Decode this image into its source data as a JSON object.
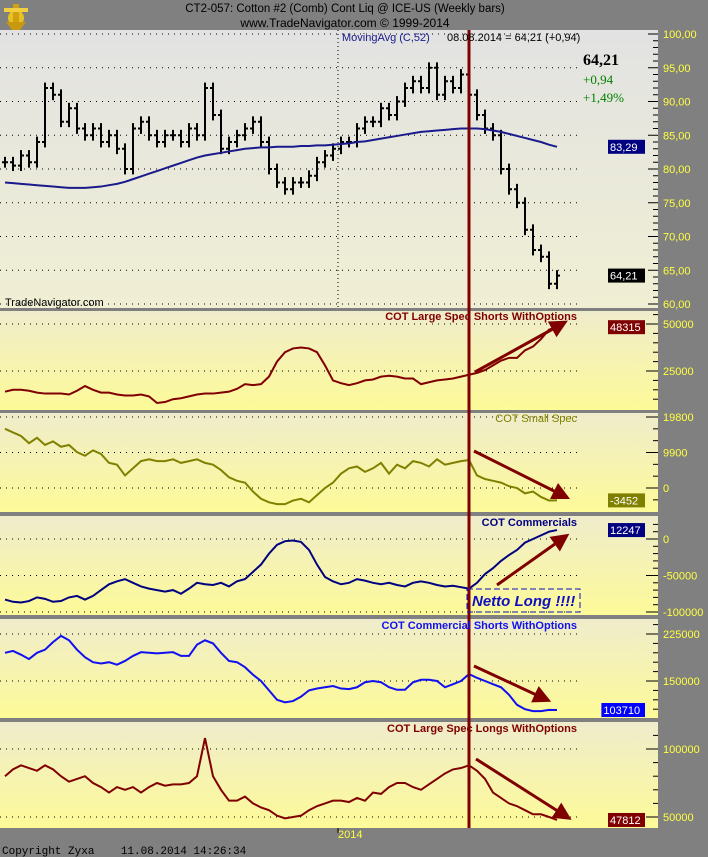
{
  "header": {
    "title": "CT2-057:  Cotton #2 (Comb) Cont Liq @ ICE-US  (Weekly bars)",
    "subtitle": "www.TradeNavigator.com © 1999-2014"
  },
  "footer": {
    "copyright": "Copyright Zyxa    11.08.2014 14:26:34",
    "x_tick": "2014"
  },
  "price_panel": {
    "indicator_label": "MovingAvg (C,52)",
    "cursor_readout": "08.08.2014 = 64,21 (+0,94)",
    "last_price": "64,21",
    "change": "+0,94",
    "change_pct": "+1,49%",
    "watermark": "TradeNavigator.com",
    "ma_value_label": "83,29",
    "price_value_label": "64,21",
    "ticks": [
      "100,00",
      "95,00",
      "90,00",
      "85,00",
      "80,00",
      "75,00",
      "70,00",
      "65,00",
      "60,00"
    ]
  },
  "annotation": {
    "text": "Netto Long !!!!"
  },
  "colors": {
    "background": "#808080",
    "axis_text": "#ffff40",
    "price_bars": "#000000",
    "moving_avg": "#1a1a8c",
    "large_spec_shorts": "#800000",
    "small_spec": "#808000",
    "commercials": "#000080",
    "commercial_shorts": "#1010f0",
    "large_spec_longs": "#800000",
    "marker_line": "#800000",
    "positive": "#008000"
  },
  "chart_data": [
    {
      "type": "bar",
      "subtype": "ohlc-weekly",
      "title": "CT2-057:  Cotton #2 (Comb) Cont Liq @ ICE-US  (Weekly bars)",
      "ylim": [
        60,
        100
      ],
      "x_tick_labels": [
        "2014"
      ],
      "marker_date": "08.08.2014",
      "close": [
        81,
        80.5,
        82,
        81,
        84,
        92,
        91,
        87,
        89,
        86,
        85,
        86,
        84,
        85,
        83,
        80,
        86,
        87,
        85,
        84,
        85,
        85,
        84,
        86,
        85,
        92,
        88,
        83,
        84,
        85,
        86,
        87,
        84,
        80,
        78,
        77,
        78,
        78,
        79,
        81,
        82,
        83,
        84,
        84,
        86,
        87,
        87,
        89,
        88,
        90,
        92,
        93,
        92,
        95,
        91,
        93,
        92,
        94,
        91,
        88,
        86,
        85,
        80,
        77,
        75,
        71,
        68,
        67,
        63,
        64.21
      ],
      "series": [
        {
          "name": "MovingAvg (C,52)",
          "values": [
            78,
            77.9,
            77.8,
            77.7,
            77.6,
            77.5,
            77.4,
            77.3,
            77.2,
            77.2,
            77.2,
            77.3,
            77.4,
            77.6,
            77.8,
            78.1,
            78.5,
            78.9,
            79.3,
            79.7,
            80.1,
            80.5,
            80.9,
            81.3,
            81.7,
            82,
            82.2,
            82.4,
            82.6,
            82.8,
            83,
            83.1,
            83.2,
            83.2,
            83.3,
            83.3,
            83.3,
            83.4,
            83.4,
            83.5,
            83.5,
            83.6,
            83.7,
            83.8,
            84,
            84.1,
            84.3,
            84.5,
            84.7,
            84.9,
            85.1,
            85.3,
            85.5,
            85.6,
            85.7,
            85.8,
            85.9,
            86,
            86,
            86,
            85.9,
            85.7,
            85.5,
            85.2,
            84.9,
            84.6,
            84.3,
            84,
            83.6,
            83.29
          ]
        }
      ],
      "last_value": "64,21"
    },
    {
      "type": "line",
      "title": "COT Large Spec Shorts WithOptions",
      "ticks": [
        "50000",
        "25000"
      ],
      "last_value": "48315",
      "values": [
        14000,
        15000,
        15000,
        14500,
        13500,
        13000,
        13000,
        13000,
        12500,
        14500,
        17000,
        15000,
        13500,
        13500,
        12500,
        12000,
        12000,
        12500,
        11500,
        8000,
        8500,
        10000,
        10500,
        11500,
        12500,
        13000,
        13000,
        13500,
        14000,
        15500,
        18000,
        17500,
        18000,
        22000,
        30000,
        35000,
        37000,
        37500,
        37000,
        35000,
        28000,
        20000,
        18500,
        17500,
        18500,
        20000,
        20500,
        22000,
        22500,
        22000,
        21000,
        21000,
        18000,
        19000,
        20000,
        20500,
        21000,
        22000,
        23000,
        24000,
        25500,
        28000,
        30500,
        32000,
        32000,
        36000,
        38000,
        42000,
        47000,
        48315
      ]
    },
    {
      "type": "line",
      "title": "COT Small Spec",
      "ticks": [
        "19800",
        "9900",
        "0"
      ],
      "last_value": "-3452",
      "values": [
        16500,
        15500,
        14500,
        12500,
        14000,
        12000,
        13000,
        11500,
        12000,
        10000,
        9000,
        10500,
        9500,
        7000,
        6500,
        3500,
        5500,
        7500,
        8000,
        7500,
        7500,
        8000,
        7000,
        7500,
        8000,
        7000,
        6500,
        5000,
        3000,
        2000,
        1500,
        -1000,
        -3000,
        -4000,
        -4500,
        -4500,
        -3500,
        -3000,
        -4000,
        -2000,
        0,
        1500,
        4000,
        5500,
        6000,
        4500,
        5500,
        7000,
        4000,
        6500,
        5500,
        7500,
        7000,
        6000,
        8000,
        6500,
        7000,
        7500,
        7800,
        3500,
        2500,
        2000,
        1500,
        500,
        0,
        -1500,
        -1000,
        -2500,
        -3500,
        -3452
      ]
    },
    {
      "type": "line",
      "title": "COT Commercials",
      "ticks": [
        "0",
        "-50000",
        "-100000"
      ],
      "last_value": "12247",
      "values": [
        -83000,
        -86000,
        -87000,
        -85000,
        -80000,
        -82000,
        -86000,
        -85000,
        -80000,
        -78000,
        -83000,
        -78000,
        -70000,
        -62000,
        -58000,
        -55000,
        -60000,
        -65000,
        -68000,
        -70000,
        -72000,
        -70000,
        -75000,
        -68000,
        -60000,
        -62000,
        -63000,
        -60000,
        -65000,
        -58000,
        -55000,
        -45000,
        -35000,
        -20000,
        -8000,
        -3000,
        -2000,
        -4000,
        -15000,
        -35000,
        -52000,
        -58000,
        -62000,
        -60000,
        -55000,
        -57000,
        -60000,
        -62000,
        -60000,
        -63000,
        -65000,
        -60000,
        -58000,
        -60000,
        -63000,
        -65000,
        -64000,
        -66000,
        -68000,
        -60000,
        -48000,
        -40000,
        -30000,
        -22000,
        -15000,
        -5000,
        0,
        5000,
        10000,
        12247
      ]
    },
    {
      "type": "line",
      "title": "COT Commercial Shorts WithOptions",
      "ticks": [
        "225000",
        "150000"
      ],
      "last_value": "103710",
      "values": [
        195000,
        198000,
        192000,
        185000,
        195000,
        200000,
        212000,
        222000,
        215000,
        200000,
        188000,
        180000,
        178000,
        180000,
        176000,
        182000,
        190000,
        196000,
        195000,
        194000,
        195000,
        196000,
        190000,
        190000,
        208000,
        215000,
        210000,
        195000,
        182000,
        180000,
        172000,
        160000,
        150000,
        135000,
        120000,
        116000,
        118000,
        125000,
        135000,
        138000,
        140000,
        142000,
        138000,
        137000,
        140000,
        148000,
        150000,
        148000,
        140000,
        136000,
        136000,
        148000,
        152000,
        152000,
        150000,
        140000,
        145000,
        150000,
        161000,
        155000,
        150000,
        145000,
        140000,
        128000,
        112000,
        105000,
        102000,
        102000,
        104000,
        103710
      ]
    },
    {
      "type": "line",
      "title": "COT Large Spec Longs WithOptions",
      "ticks": [
        "100000",
        "50000"
      ],
      "last_value": "47812",
      "values": [
        80000,
        85000,
        88000,
        86000,
        84000,
        88000,
        85000,
        80000,
        76000,
        78000,
        80000,
        75000,
        72000,
        68000,
        72000,
        70000,
        72000,
        68000,
        72000,
        75000,
        73000,
        74000,
        74000,
        75000,
        80000,
        108000,
        80000,
        70000,
        62000,
        62000,
        65000,
        60000,
        57000,
        55000,
        51000,
        49000,
        50000,
        51000,
        55000,
        58000,
        60000,
        62000,
        62000,
        61000,
        64000,
        62000,
        68000,
        67000,
        72000,
        75000,
        75000,
        72000,
        70000,
        74000,
        78000,
        82000,
        85000,
        86000,
        88000,
        84000,
        78000,
        68000,
        64000,
        60000,
        58000,
        55000,
        52000,
        52000,
        50000,
        47812
      ]
    }
  ]
}
